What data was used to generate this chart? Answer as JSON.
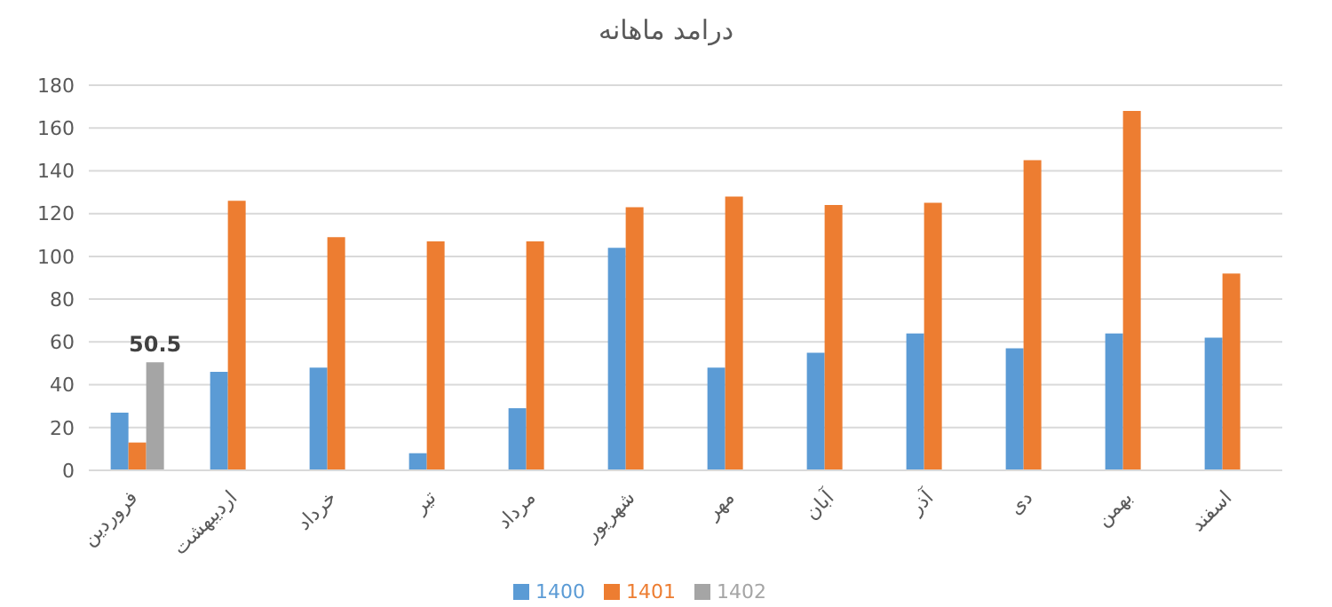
{
  "chart_data": {
    "type": "bar",
    "title": "درامد ماهانه",
    "categories": [
      "فروردین",
      "اردیبهشت",
      "خرداد",
      "تیر",
      "مرداد",
      "شهریور",
      "مهر",
      "آبان",
      "آذر",
      "دی",
      "بهمن",
      "اسفند"
    ],
    "series": [
      {
        "name": "1400",
        "color": "#5b9bd5",
        "values": [
          27,
          46,
          48,
          8,
          29,
          104,
          48,
          55,
          64,
          57,
          64,
          62
        ]
      },
      {
        "name": "1401",
        "color": "#ed7d31",
        "values": [
          13,
          126,
          109,
          107,
          107,
          123,
          128,
          124,
          125,
          145,
          168,
          92
        ]
      },
      {
        "name": "1402",
        "color": "#a5a5a5",
        "values": [
          50.5,
          null,
          null,
          null,
          null,
          null,
          null,
          null,
          null,
          null,
          null,
          null
        ],
        "value_labels": [
          "50.5",
          null,
          null,
          null,
          null,
          null,
          null,
          null,
          null,
          null,
          null,
          null
        ]
      }
    ],
    "ylim": [
      0,
      180
    ],
    "yticks": [
      0,
      20,
      40,
      60,
      80,
      100,
      120,
      140,
      160,
      180
    ],
    "grid": "y",
    "legend": "bottom"
  }
}
